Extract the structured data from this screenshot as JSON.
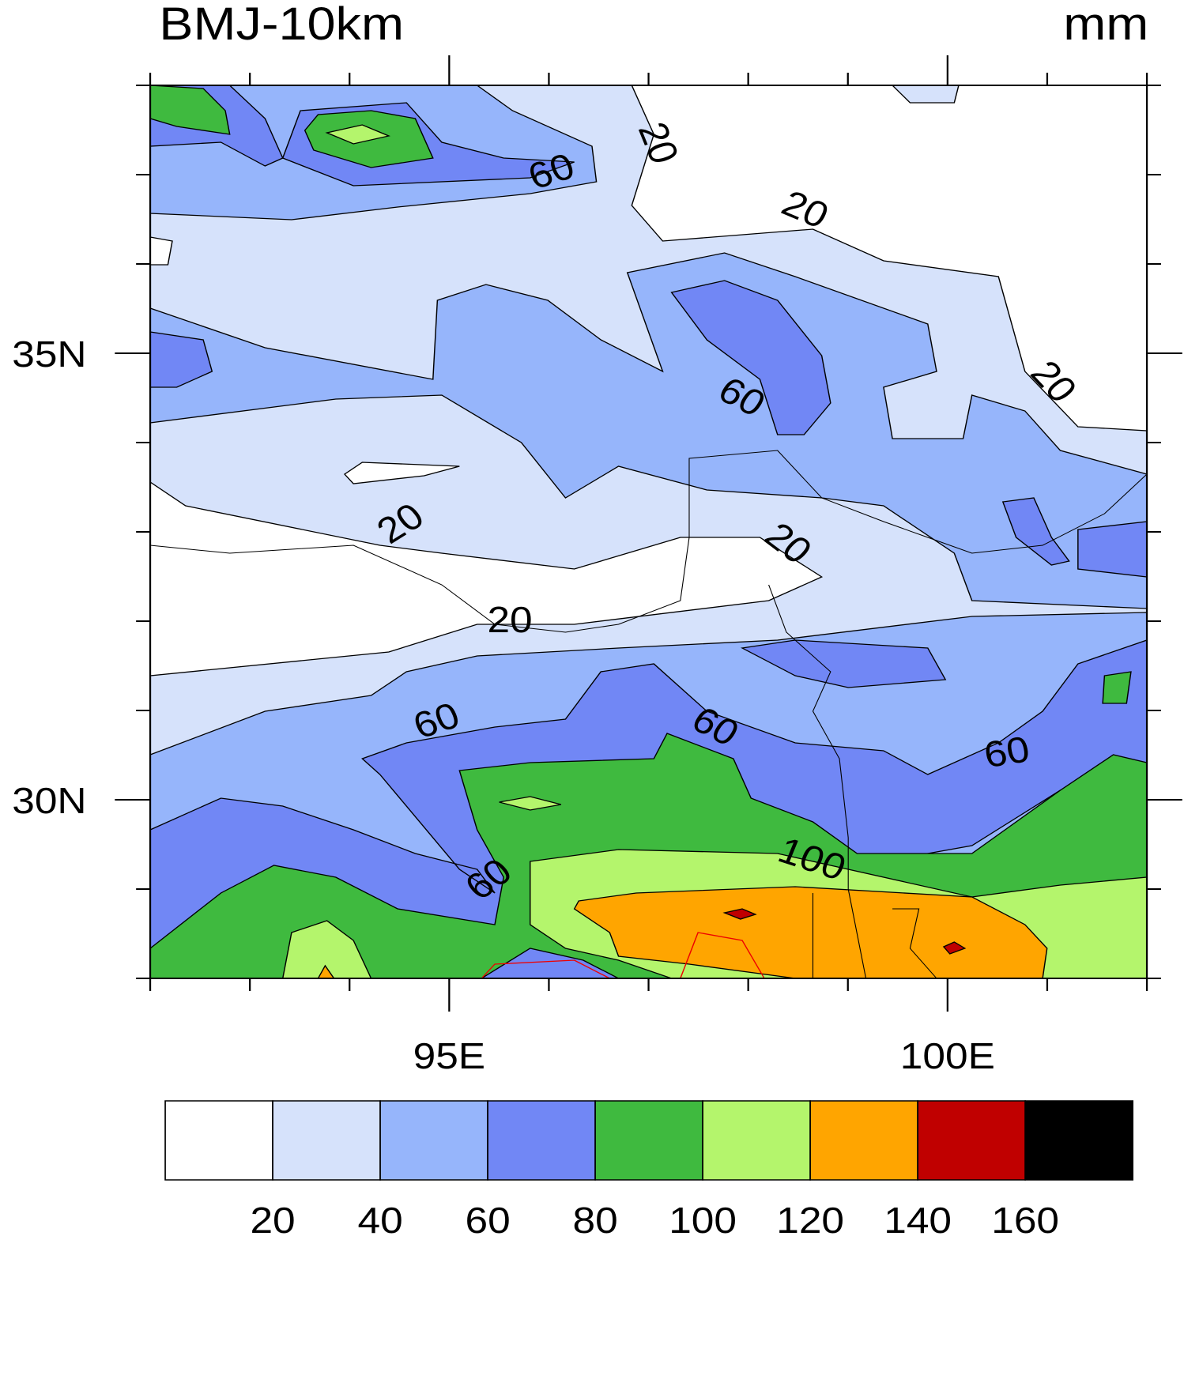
{
  "title": "BMJ-10km",
  "units": "mm",
  "axes": {
    "lonlim": [
      92,
      102
    ],
    "latlim": [
      28,
      38
    ],
    "xticks": [
      {
        "value": 95,
        "label": "95E"
      },
      {
        "value": 100,
        "label": "100E"
      }
    ],
    "yticks": [
      {
        "value": 35,
        "label": "35N"
      },
      {
        "value": 30,
        "label": "30N"
      }
    ],
    "xminorticks": [
      92,
      93,
      94,
      96,
      97,
      98,
      99,
      101,
      102
    ],
    "yminorticks": [
      28,
      29,
      31,
      32,
      33,
      34,
      36,
      37,
      38
    ]
  },
  "contour_labels": [
    "20",
    "20",
    "20",
    "20",
    "20",
    "20",
    "60",
    "60",
    "60",
    "60",
    "60",
    "60",
    "100"
  ],
  "colorbar": {
    "levels": [
      20,
      40,
      60,
      80,
      100,
      120,
      140,
      160
    ],
    "colors": [
      "#ffffff",
      "#d6e2fb",
      "#96b5fb",
      "#7187f5",
      "#3fba3f",
      "#b4f56c",
      "#ffa500",
      "#c00000",
      "#000000"
    ]
  }
}
